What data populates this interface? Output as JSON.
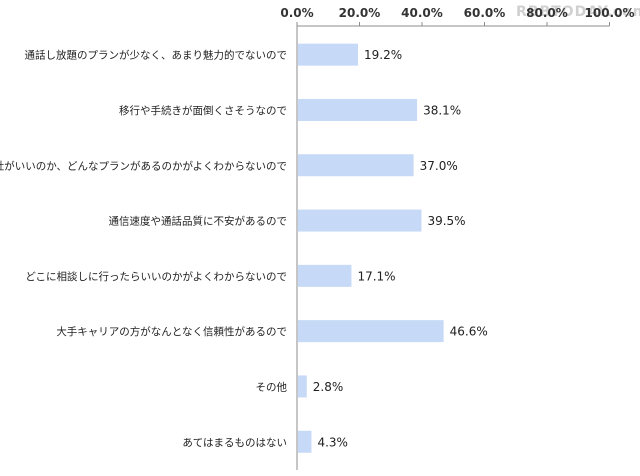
{
  "watermark": "RBBTODAY.com",
  "chart_data": {
    "type": "bar",
    "orientation": "horizontal",
    "categories": [
      "通話し放題のプランが少なく、あまり魅力的でないので",
      "移行や手続きが面倒くさそうなので",
      "どの会社がいいのか、どんなプランがあるのかがよくわからないので",
      "通信速度や通話品質に不安があるので",
      "どこに相談しに行ったらいいのかがよくわからないので",
      "大手キャリアの方がなんとなく信頼性があるので",
      "その他",
      "あてはまるものはない"
    ],
    "values": [
      19.2,
      38.1,
      37.0,
      39.5,
      17.1,
      46.6,
      2.8,
      4.3
    ],
    "value_labels": [
      "19.2%",
      "38.1%",
      "37.0%",
      "39.5%",
      "17.1%",
      "46.6%",
      "2.8%",
      "4.3%"
    ],
    "xlim": [
      0,
      100
    ],
    "ticks": [
      0,
      20,
      40,
      60,
      80,
      100
    ],
    "tick_labels": [
      "0.0%",
      "20.0%",
      "40.0%",
      "60.0%",
      "80.0%",
      "100.0%"
    ],
    "axis_position": "top",
    "grid": false,
    "bar_color": "#c6d9f6",
    "axis_color": "#8c8c8c"
  }
}
